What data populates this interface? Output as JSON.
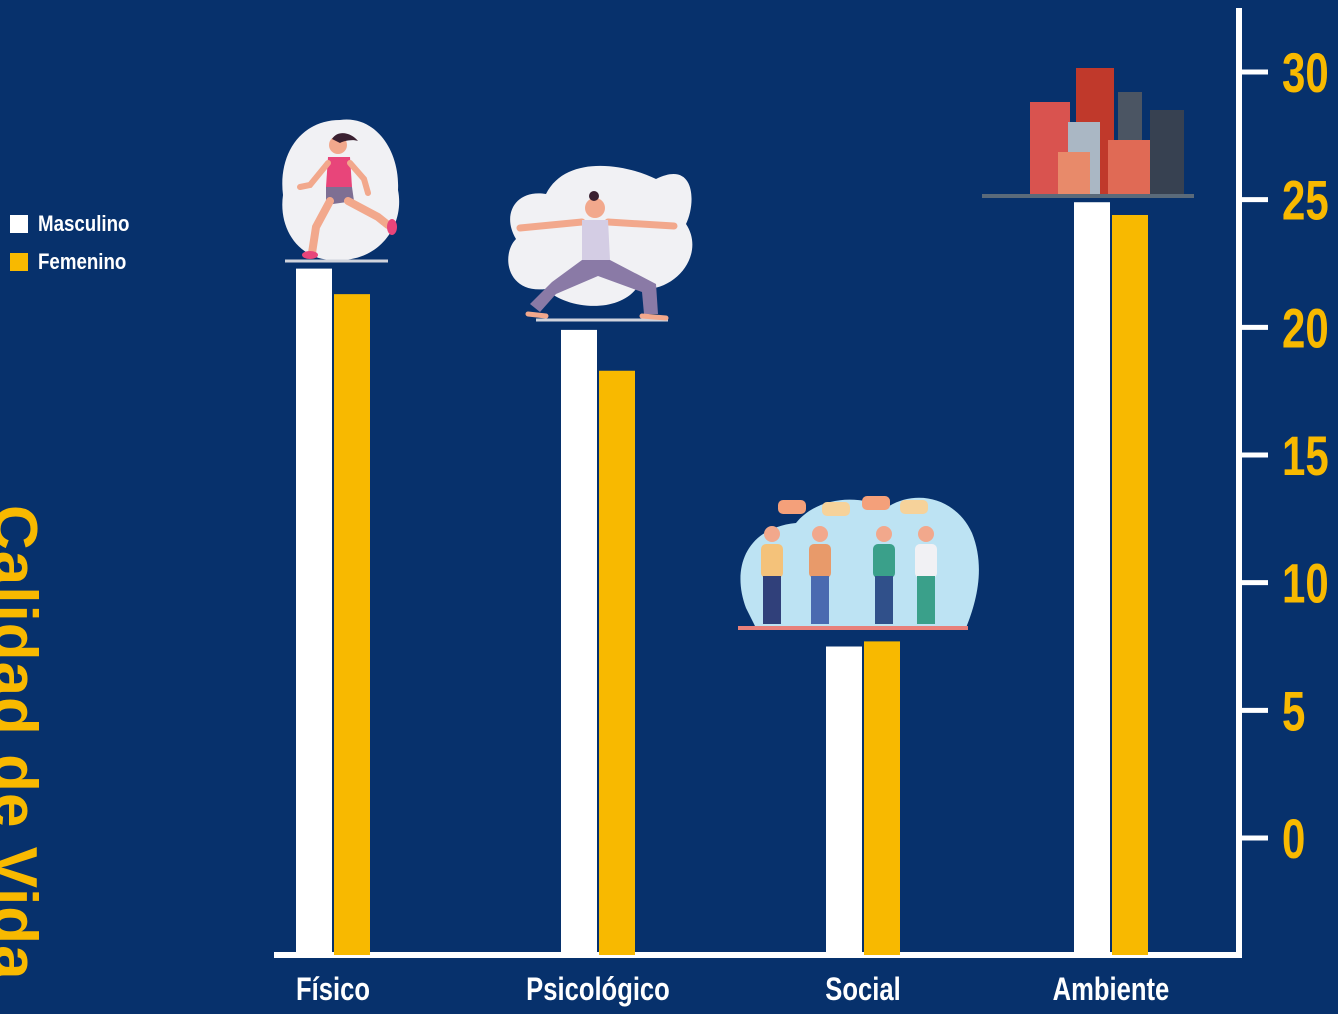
{
  "chart_data": {
    "type": "bar",
    "title": "",
    "ylabel": "Calidad de Vida",
    "xlabel": "",
    "categories": [
      "Físico",
      "Psicológico",
      "Social",
      "Ambiente"
    ],
    "series": [
      {
        "name": "Masculino",
        "color": "#ffffff",
        "values": [
          22.3,
          19.9,
          7.5,
          24.9
        ]
      },
      {
        "name": "Femenino",
        "color": "#f8b900",
        "values": [
          21.3,
          18.3,
          7.7,
          24.4
        ]
      }
    ],
    "yticks": [
      0,
      5,
      10,
      15,
      20,
      25,
      30
    ],
    "ylim": [
      -5,
      32
    ],
    "grid": false,
    "legend_position": "top-left",
    "axis_position": "right",
    "tick_label_color": "#f8b900",
    "axis_color": "#ffffff",
    "background": "#07316c",
    "illustrations": [
      "runner-icon",
      "yoga-icon",
      "people-chat-icon",
      "city-buildings-icon"
    ]
  }
}
